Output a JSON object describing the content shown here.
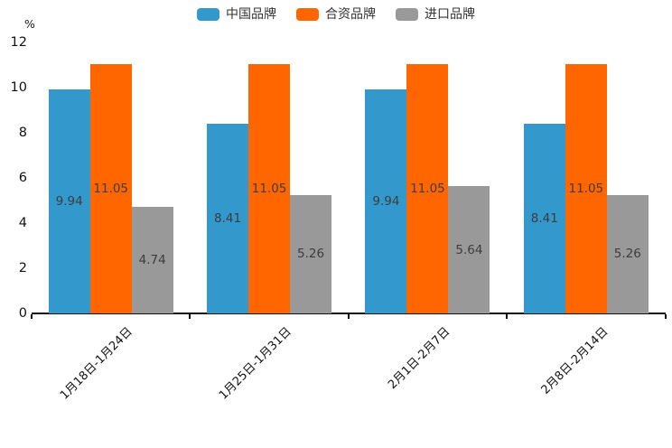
{
  "chart_data": {
    "type": "bar",
    "title": "",
    "unit_label": "%",
    "categories": [
      "1月18日-1月24日",
      "1月25日-1月31日",
      "2月1日-2月7日",
      "2月8日-2月14日"
    ],
    "series": [
      {
        "name": "中国品牌",
        "color": "#3398CB",
        "values": [
          9.94,
          8.41,
          9.94,
          8.41
        ]
      },
      {
        "name": "合资品牌",
        "color": "#FF6600",
        "values": [
          11.05,
          11.05,
          11.05,
          11.05
        ]
      },
      {
        "name": "进口品牌",
        "color": "#999999",
        "values": [
          4.74,
          5.26,
          5.64,
          5.26
        ]
      }
    ],
    "y_ticks": [
      0,
      2,
      4,
      6,
      8,
      10,
      12
    ],
    "ylim": [
      0,
      12
    ],
    "grid": false,
    "legend_position": "top",
    "value_labels": "inside-center",
    "value_label_decimals": 2,
    "axis_color": "#111111",
    "label_color": "#3d3d3d"
  }
}
